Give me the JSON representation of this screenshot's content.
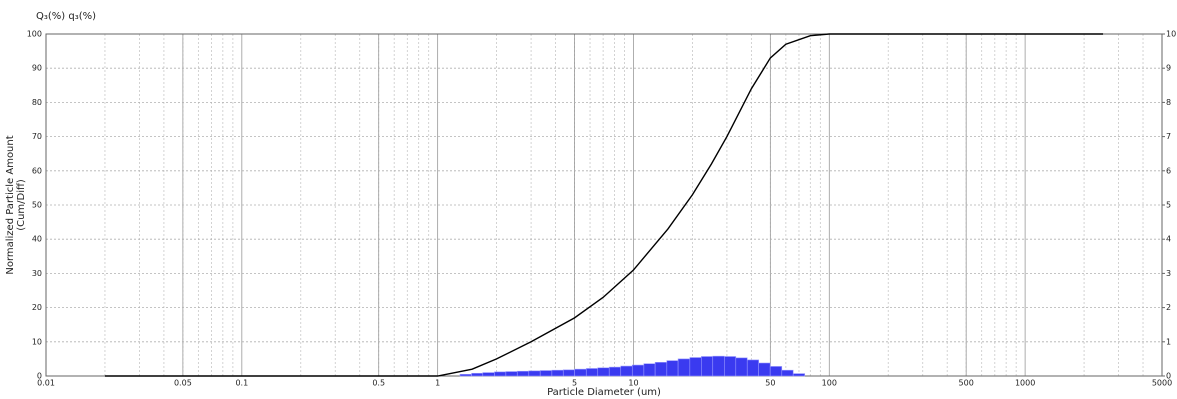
{
  "chart_data": {
    "type": "log-combo",
    "title": "Q₃(%) q₃(%)",
    "xlabel": "Particle Diameter (um)",
    "ylabel": [
      "Normalized Particle Amount",
      "(Cum/Diff)"
    ],
    "log_x": true,
    "grid": true,
    "xlim": [
      0.01,
      5000
    ],
    "xticks": [
      0.01,
      0.05,
      0.1,
      0.5,
      1,
      5,
      10,
      50,
      100,
      500,
      1000,
      5000
    ],
    "ylim": [
      0,
      100
    ],
    "yticks": [
      0,
      10,
      20,
      30,
      40,
      50,
      60,
      70,
      80,
      90,
      100
    ],
    "y2lim": [
      0,
      10
    ],
    "y2ticks": [
      0,
      1,
      2,
      3,
      4,
      5,
      6,
      7,
      8,
      9,
      10
    ],
    "series": [
      {
        "type": "line",
        "color": "#000000",
        "x": [
          0.02,
          1,
          1.5,
          2,
          3,
          5,
          7,
          10,
          15,
          20,
          25,
          30,
          40,
          50,
          60,
          80,
          100,
          200,
          500,
          1000,
          2500
        ],
        "values": [
          0,
          0,
          2,
          5,
          10,
          17,
          23,
          31,
          43,
          53,
          62,
          70,
          84,
          93,
          97,
          99.5,
          100,
          100,
          100,
          100,
          100
        ]
      },
      {
        "type": "histogram",
        "axis": "y2",
        "color": "#3a3af0",
        "bins": [
          1.3,
          1.49,
          1.7,
          1.95,
          2.23,
          2.55,
          2.92,
          3.34,
          3.83,
          4.38,
          5.01,
          5.74,
          6.57,
          7.52,
          8.61,
          9.86,
          11.3,
          12.9,
          14.8,
          16.9,
          19.4,
          22.2,
          25.4,
          29.1,
          33.3,
          38.1,
          43.6,
          49.9,
          57.2,
          65.4,
          74.9
        ],
        "values": [
          0.05,
          0.08,
          0.1,
          0.12,
          0.13,
          0.14,
          0.15,
          0.16,
          0.17,
          0.18,
          0.2,
          0.22,
          0.24,
          0.26,
          0.29,
          0.32,
          0.36,
          0.4,
          0.45,
          0.5,
          0.54,
          0.57,
          0.58,
          0.57,
          0.53,
          0.47,
          0.38,
          0.28,
          0.17,
          0.07
        ]
      }
    ]
  }
}
